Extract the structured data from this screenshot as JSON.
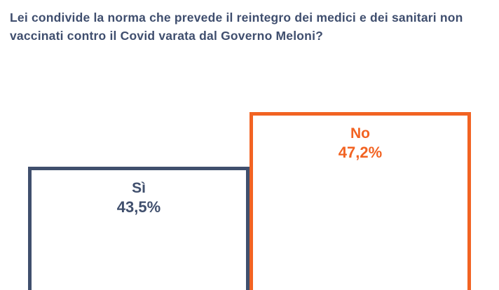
{
  "chart_data": {
    "type": "bar",
    "title": "Lei condivide la norma che prevede il reintegro dei medici e dei sanitari non vaccinati contro il Covid varata dal Governo Meloni?",
    "categories": [
      "Sì",
      "No"
    ],
    "values": [
      43.5,
      47.2
    ],
    "value_labels": [
      "43,5%",
      "47,2%"
    ],
    "colors": [
      "#404f6d",
      "#f26322"
    ],
    "title_color": "#3f4e6e",
    "bar_style": "outlined-white-fill",
    "bars_cropped_at_bottom": true,
    "axes_visible": false,
    "grid": false,
    "legend": "none"
  }
}
